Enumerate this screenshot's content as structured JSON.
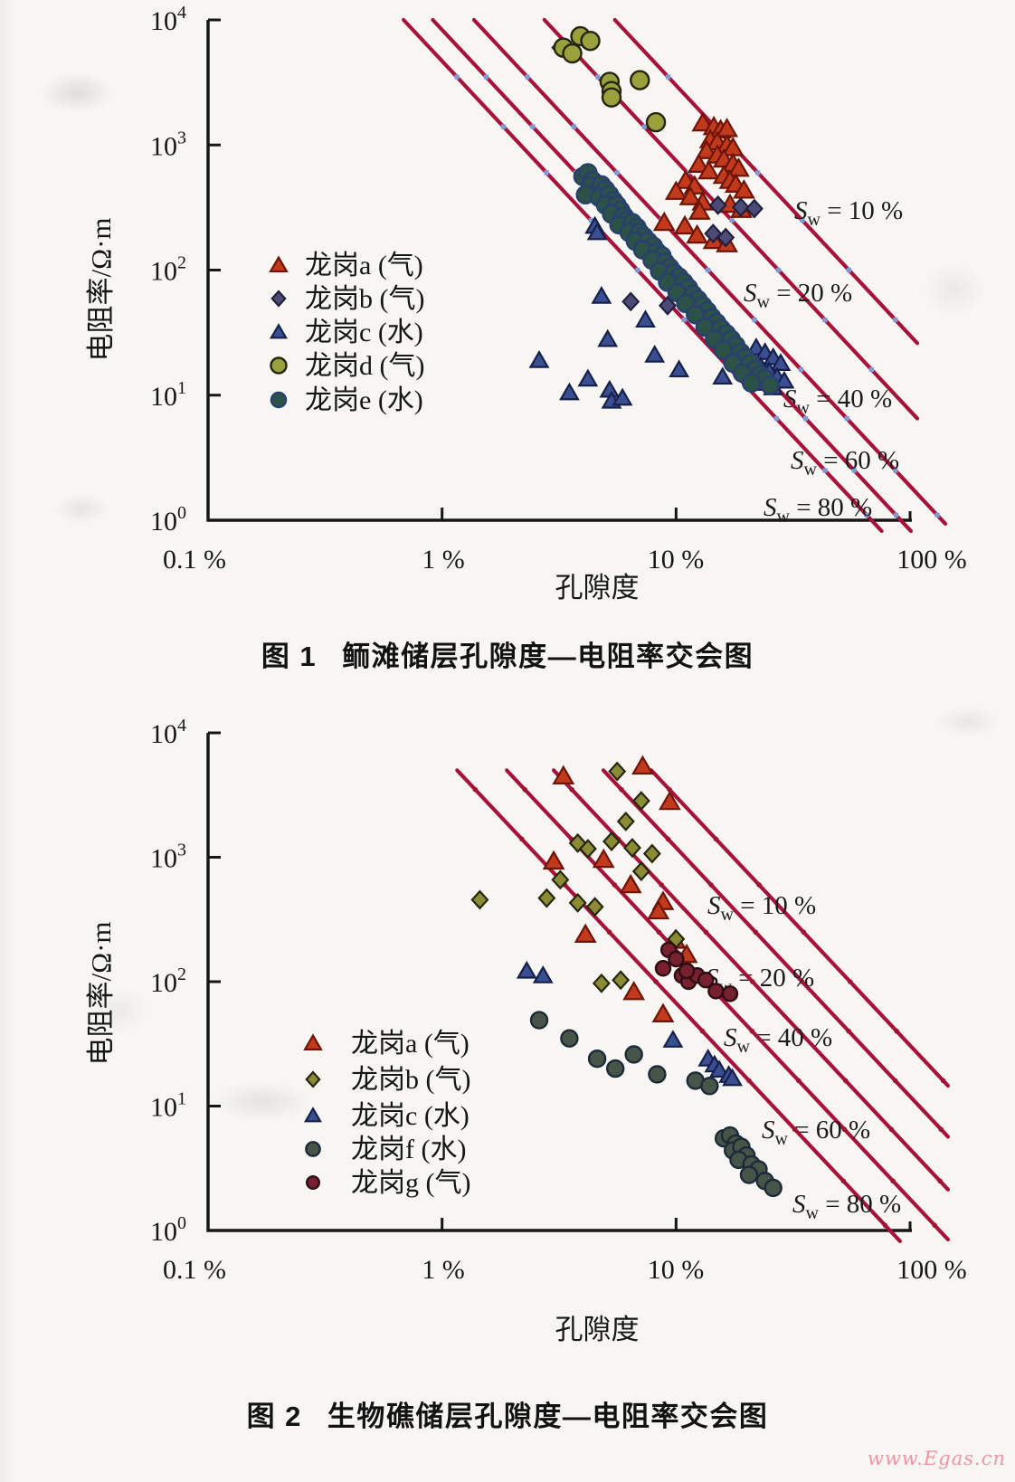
{
  "page": {
    "watermark": "www.Egas.cn",
    "watermark_color": "#ef93a4",
    "paper_color": "#f7f6f2"
  },
  "chart_data": [
    {
      "type": "scatter",
      "name": "figure-1",
      "caption": {
        "label": "图 1",
        "title": "鲕滩储层孔隙度—电阻率交会图"
      },
      "x_axis": {
        "title": "孔隙度",
        "scale": "log",
        "tick_labels": [
          "0.1 %",
          "1 %",
          "10 %",
          "100 %"
        ],
        "tick_values": [
          0.1,
          1,
          10,
          100
        ]
      },
      "y_axis": {
        "title": "电阻率/Ω·m",
        "scale": "log",
        "tick_base": "10",
        "tick_exponents": [
          4,
          3,
          2,
          1,
          0
        ],
        "tick_labels": [
          "10⁴",
          "10³",
          "10²",
          "10¹",
          "10⁰"
        ]
      },
      "saturation_lines": {
        "color": "#a8123a",
        "dot_color": "#7e9bd8",
        "dot_shape": "square",
        "values_percent": [
          10,
          20,
          40,
          60,
          80
        ],
        "labels": [
          "Sw = 10 %",
          "Sw = 20 %",
          "Sw = 40 %",
          "Sw = 60 %",
          "Sw = 80 %"
        ],
        "model": {
          "water_resistivity": 0.3,
          "porosity_exponent": 2,
          "saturation_exponent": 2,
          "top_resistivity": 10000
        }
      },
      "series": [
        {
          "name": "longgang-a",
          "label": "龙岗a (气)",
          "marker": "triangle",
          "size": 10.5,
          "fill": "#c13a1b",
          "stroke": "#6e1408",
          "points": [
            [
              13,
              1500
            ],
            [
              14.5,
              1400
            ],
            [
              15.5,
              1320
            ],
            [
              16.5,
              1350
            ],
            [
              14,
              1100
            ],
            [
              15,
              1060
            ],
            [
              16.5,
              1000
            ],
            [
              17.5,
              950
            ],
            [
              13.5,
              900
            ],
            [
              15,
              830
            ],
            [
              16,
              770
            ],
            [
              17.5,
              710
            ],
            [
              18.5,
              650
            ],
            [
              12.5,
              700
            ],
            [
              13.8,
              620
            ],
            [
              16,
              570
            ],
            [
              17,
              520
            ],
            [
              18,
              485
            ],
            [
              19.5,
              435
            ],
            [
              11,
              520
            ],
            [
              12,
              470
            ],
            [
              10,
              425
            ],
            [
              11.5,
              385
            ],
            [
              13,
              350
            ],
            [
              17,
              335
            ],
            [
              19,
              305
            ],
            [
              10.9,
              225
            ],
            [
              12.3,
              190
            ],
            [
              12.6,
              295
            ],
            [
              8.9,
              240
            ],
            [
              14.5,
              172
            ],
            [
              16.5,
              162
            ]
          ]
        },
        {
          "name": "longgang-b",
          "label": "龙岗b (气)",
          "marker": "diamond",
          "size": 8.5,
          "fill": "#4c4a77",
          "stroke": "#221f3c",
          "points": [
            [
              3.2,
              6000
            ],
            [
              15.1,
              330
            ],
            [
              18.9,
              318
            ],
            [
              21.6,
              310
            ],
            [
              14.4,
              196
            ],
            [
              16.3,
              182
            ],
            [
              6.4,
              56
            ],
            [
              9.2,
              52
            ]
          ]
        },
        {
          "name": "longgang-c",
          "label": "龙岗c (水)",
          "marker": "triangle",
          "size": 9.5,
          "fill": "#3a4f92",
          "stroke": "#16204a",
          "points": [
            [
              4.8,
              62
            ],
            [
              7.4,
              40
            ],
            [
              5.1,
              28
            ],
            [
              4.2,
              13.5
            ],
            [
              3.5,
              10.5
            ],
            [
              5.2,
              11
            ],
            [
              5.3,
              9
            ],
            [
              5.9,
              9.5
            ],
            [
              2.6,
              19
            ],
            [
              8.1,
              21
            ],
            [
              10.3,
              16
            ],
            [
              15.8,
              14
            ],
            [
              4.5,
              225
            ],
            [
              4.6,
              200
            ],
            [
              22,
              24
            ],
            [
              24,
              22
            ],
            [
              26,
              20
            ],
            [
              28,
              18
            ],
            [
              23,
              17
            ],
            [
              25,
              15.5
            ],
            [
              27,
              14
            ],
            [
              29,
              13
            ],
            [
              24,
              12.5
            ],
            [
              26,
              11.5
            ]
          ]
        },
        {
          "name": "longgang-d",
          "label": "龙岗d (气)",
          "marker": "circle",
          "size": 10,
          "fill": "#9aa03b",
          "stroke": "#23250f",
          "points": [
            [
              3.9,
              7400
            ],
            [
              4.3,
              6800
            ],
            [
              3.3,
              6000
            ],
            [
              3.6,
              5400
            ],
            [
              5.2,
              3200
            ],
            [
              5.3,
              2700
            ],
            [
              5.3,
              2400
            ],
            [
              7.0,
              3300
            ],
            [
              8.2,
              1520
            ]
          ]
        },
        {
          "name": "longgang-e",
          "label": "龙岗e (水)",
          "marker": "circle",
          "size": 9.5,
          "fill": "#2c5147",
          "stroke": "#27406f",
          "points": [
            [
              4.0,
              560
            ],
            [
              4.2,
              600
            ],
            [
              4.4,
              520
            ],
            [
              4.3,
              470
            ],
            [
              4.6,
              430
            ],
            [
              4.1,
              400
            ],
            [
              4.8,
              480
            ],
            [
              5.0,
              440
            ],
            [
              4.7,
              380
            ],
            [
              5.2,
              400
            ],
            [
              5.4,
              360
            ],
            [
              5.0,
              330
            ],
            [
              5.6,
              330
            ],
            [
              5.8,
              300
            ],
            [
              5.3,
              280
            ],
            [
              6.0,
              270
            ],
            [
              6.2,
              250
            ],
            [
              5.7,
              230
            ],
            [
              6.5,
              240
            ],
            [
              6.8,
              220
            ],
            [
              6.3,
              200
            ],
            [
              7.0,
              200
            ],
            [
              7.3,
              185
            ],
            [
              6.7,
              170
            ],
            [
              7.6,
              170
            ],
            [
              8.0,
              155
            ],
            [
              7.2,
              145
            ],
            [
              8.3,
              140
            ],
            [
              8.7,
              130
            ],
            [
              7.9,
              120
            ],
            [
              9.0,
              115
            ],
            [
              9.4,
              105
            ],
            [
              8.5,
              98
            ],
            [
              9.8,
              95
            ],
            [
              10.3,
              88
            ],
            [
              9.2,
              80
            ],
            [
              10.8,
              80
            ],
            [
              11.3,
              72
            ],
            [
              10.1,
              66
            ],
            [
              11.8,
              64
            ],
            [
              12.4,
              58
            ],
            [
              11.0,
              54
            ],
            [
              13.0,
              52
            ],
            [
              13.6,
              47
            ],
            [
              12.1,
              44
            ],
            [
              14.2,
              42
            ],
            [
              14.9,
              38
            ],
            [
              13.3,
              35
            ],
            [
              15.6,
              34
            ],
            [
              16.4,
              31
            ],
            [
              14.6,
              28
            ],
            [
              17.2,
              28
            ],
            [
              18.0,
              25
            ],
            [
              15.9,
              23
            ],
            [
              18.9,
              22
            ],
            [
              19.8,
              20
            ],
            [
              17.5,
              18
            ],
            [
              20.8,
              18
            ],
            [
              21.8,
              16
            ],
            [
              19.2,
              15
            ],
            [
              22.9,
              14.5
            ],
            [
              24.0,
              13.5
            ],
            [
              21.0,
              12.5
            ],
            [
              25.2,
              12
            ]
          ]
        }
      ]
    },
    {
      "type": "scatter",
      "name": "figure-2",
      "caption": {
        "label": "图 2",
        "title": "生物礁储层孔隙度—电阻率交会图"
      },
      "x_axis": {
        "title": "孔隙度",
        "scale": "log",
        "tick_labels": [
          "0.1 %",
          "1 %",
          "10 %",
          "100 %"
        ],
        "tick_values": [
          0.1,
          1,
          10,
          100
        ]
      },
      "y_axis": {
        "title": "电阻率/Ω·m",
        "scale": "log",
        "tick_base": "10",
        "tick_exponents": [
          4,
          3,
          2,
          1,
          0
        ],
        "tick_labels": [
          "10⁴",
          "10³",
          "10²",
          "10¹",
          "10⁰"
        ]
      },
      "saturation_lines": {
        "color": "#a8123a",
        "dot_color": "#9c1532",
        "dot_shape": "circle",
        "values_percent": [
          10,
          20,
          40,
          60,
          80
        ],
        "labels": [
          "Sw = 10 %",
          "Sw = 20 %",
          "Sw = 40 %",
          "Sw = 60 %",
          "Sw = 80 %"
        ],
        "model": {
          "porosity_exponent": 2,
          "saturation_exponent": 2,
          "top_resistivity": 5000,
          "top_porosity_percent": [
            7.84,
            4.89,
            3.0,
            1.89,
            1.16
          ]
        }
      },
      "series": [
        {
          "name": "longgang-a",
          "label": "龙岗a (气)",
          "marker": "triangle",
          "size": 10.5,
          "fill": "#c13a1b",
          "stroke": "#6e1408",
          "points": [
            [
              7.2,
              5400
            ],
            [
              3.3,
              4500
            ],
            [
              9.4,
              2800
            ],
            [
              4.9,
              960
            ],
            [
              3.0,
              930
            ],
            [
              6.4,
              600
            ],
            [
              8.8,
              440
            ],
            [
              8.4,
              370
            ],
            [
              4.1,
              240
            ],
            [
              9.9,
              215
            ],
            [
              11.1,
              165
            ],
            [
              6.6,
              83
            ],
            [
              8.8,
              55
            ]
          ]
        },
        {
          "name": "longgang-b",
          "label": "龙岗b (气)",
          "marker": "diamond",
          "size": 8.5,
          "fill": "#8b8b34",
          "stroke": "#26260e",
          "points": [
            [
              5.6,
              4900
            ],
            [
              7.1,
              2840
            ],
            [
              6.1,
              1940
            ],
            [
              3.8,
              1300
            ],
            [
              5.3,
              1340
            ],
            [
              6.5,
              1190
            ],
            [
              4.2,
              1170
            ],
            [
              7.9,
              1070
            ],
            [
              7.1,
              770
            ],
            [
              3.2,
              660
            ],
            [
              2.8,
              470
            ],
            [
              3.8,
              430
            ],
            [
              4.5,
              400
            ],
            [
              1.45,
              455
            ],
            [
              10,
              220
            ],
            [
              4.8,
              97
            ],
            [
              5.8,
              103
            ]
          ]
        },
        {
          "name": "longgang-c",
          "label": "龙岗c (水)",
          "marker": "triangle",
          "size": 9.5,
          "fill": "#3a4f92",
          "stroke": "#16204a",
          "points": [
            [
              2.3,
              122
            ],
            [
              2.7,
              112
            ],
            [
              9.7,
              34
            ],
            [
              13.7,
              24
            ],
            [
              14.6,
              21.5
            ],
            [
              15.3,
              19.5
            ],
            [
              16.8,
              17.7
            ],
            [
              17.4,
              16.7
            ]
          ]
        },
        {
          "name": "longgang-f",
          "label": "龙岗f (水)",
          "marker": "circle",
          "size": 9,
          "fill": "#475548",
          "stroke": "#1c2a3a",
          "points": [
            [
              2.6,
              49
            ],
            [
              3.5,
              35
            ],
            [
              4.6,
              24
            ],
            [
              5.5,
              20
            ],
            [
              6.6,
              26
            ],
            [
              8.3,
              18
            ],
            [
              12.1,
              16
            ],
            [
              13.9,
              14.5
            ],
            [
              16,
              5.5
            ],
            [
              17,
              5.8
            ],
            [
              18,
              5
            ],
            [
              17.5,
              4.4
            ],
            [
              19,
              4.7
            ],
            [
              20,
              4
            ],
            [
              18.5,
              3.7
            ],
            [
              21,
              3.4
            ],
            [
              22.5,
              3.1
            ],
            [
              20.5,
              2.8
            ],
            [
              24,
              2.5
            ],
            [
              26,
              2.2
            ]
          ]
        },
        {
          "name": "longgang-g",
          "label": "龙岗g (气)",
          "marker": "circle",
          "size": 8,
          "fill": "#77202f",
          "stroke": "#2e0c12",
          "points": [
            [
              9.3,
              180
            ],
            [
              10,
              152
            ],
            [
              8.8,
              128
            ],
            [
              10.6,
              112
            ],
            [
              11.3,
              100
            ],
            [
              12.3,
              112
            ],
            [
              13.4,
              103
            ],
            [
              11.1,
              122
            ],
            [
              14.8,
              84
            ],
            [
              17,
              80
            ]
          ]
        }
      ]
    }
  ]
}
